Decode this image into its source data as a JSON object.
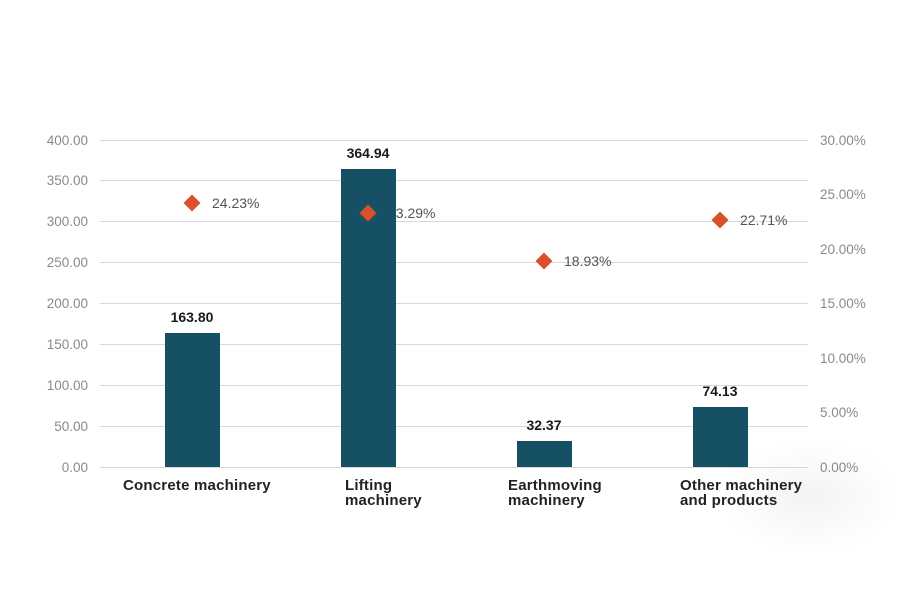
{
  "chart_data": {
    "type": "combo",
    "title": "",
    "categories": [
      "Concrete machinery",
      "Lifting machinery",
      "Earthmoving machinery",
      "Other machinery and products"
    ],
    "category_lines": [
      [
        "Concrete machinery"
      ],
      [
        "Lifting",
        "machinery"
      ],
      [
        "Earthmoving",
        "machinery"
      ],
      [
        "Other machinery",
        "and products"
      ]
    ],
    "series": [
      {
        "name": "bar-series",
        "type": "bar",
        "axis": "left",
        "values": [
          163.8,
          364.94,
          32.37,
          74.13
        ],
        "labels": [
          "163.80",
          "364.94",
          "32.37",
          "74.13"
        ]
      },
      {
        "name": "marker-series",
        "type": "scatter",
        "axis": "right",
        "values": [
          24.23,
          23.29,
          18.93,
          22.71
        ],
        "labels": [
          "24.23%",
          "23.29%",
          "18.93%",
          "22.71%"
        ]
      }
    ],
    "left_axis": {
      "min": 0,
      "max": 400,
      "ticks": [
        "400.00",
        "350.00",
        "300.00",
        "250.00",
        "200.00",
        "150.00",
        "100.00",
        "50.00",
        "0.00"
      ],
      "tick_values": [
        400,
        350,
        300,
        250,
        200,
        150,
        100,
        50,
        0
      ]
    },
    "right_axis": {
      "min": 0,
      "max": 30,
      "ticks": [
        "30.00%",
        "25.00%",
        "20.00%",
        "15.00%",
        "10.00%",
        "5.00%",
        "0.00%"
      ],
      "tick_values": [
        30,
        25,
        20,
        15,
        10,
        5,
        0
      ]
    },
    "grid": true,
    "legend": "none",
    "colors": {
      "bar": "#165064",
      "marker": "#d9502c",
      "grid": "#d9d9d9",
      "axis_text": "#8a8a8a",
      "value_text": "#1a1a1a",
      "pct_text": "#545454",
      "category_text": "#222222",
      "background": "#ffffff"
    }
  }
}
